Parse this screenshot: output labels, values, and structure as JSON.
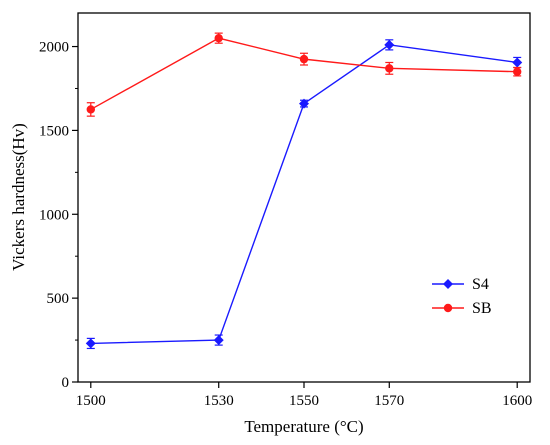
{
  "chart_data": {
    "type": "line",
    "xlabel": "Temperature (°C)",
    "ylabel": "Vickers hardness(Hv)",
    "categories": [
      "1500",
      "1530",
      "1550",
      "1570",
      "1600"
    ],
    "x": [
      1500,
      1530,
      1550,
      1570,
      1600
    ],
    "ylim": [
      0,
      2200
    ],
    "yticks": [
      0,
      500,
      1000,
      1500,
      2000
    ],
    "xlim": [
      1497,
      1603
    ],
    "grid": false,
    "legend_position": "right",
    "series": [
      {
        "name": "S4",
        "color": "#1a1aff",
        "marker": "diamond",
        "values": [
          230,
          250,
          1660,
          2010,
          1905
        ],
        "errors": [
          30,
          30,
          20,
          30,
          30
        ]
      },
      {
        "name": "SB",
        "color": "#ff1a1a",
        "marker": "circle",
        "values": [
          1625,
          2050,
          1925,
          1870,
          1850
        ],
        "errors": [
          40,
          30,
          35,
          35,
          25
        ]
      }
    ]
  }
}
